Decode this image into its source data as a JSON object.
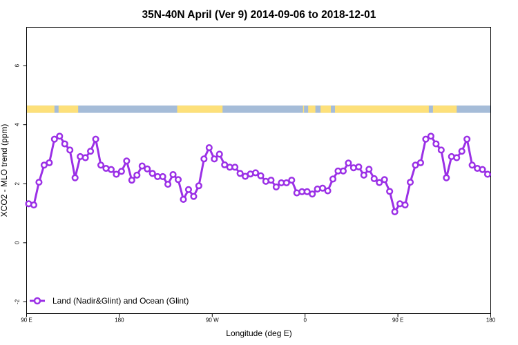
{
  "chart_data": {
    "type": "line",
    "title": "35N-40N April (Ver 9)   2014-09-06 to 2018-12-01",
    "xlabel": "Longitude (deg E)",
    "ylabel": "XCO2 - MLO trend (ppm)",
    "xlim": [
      90,
      540
    ],
    "ylim": [
      -2.4,
      7.3
    ],
    "x_ticks": [
      {
        "value": 90,
        "label": "90 E"
      },
      {
        "value": 180,
        "label": "180"
      },
      {
        "value": 270,
        "label": "90 W"
      },
      {
        "value": 360,
        "label": "0"
      },
      {
        "value": 450,
        "label": "90 E"
      },
      {
        "value": 540,
        "label": "180"
      }
    ],
    "y_ticks": [
      {
        "value": -2,
        "label": "-2"
      },
      {
        "value": 0,
        "label": "0"
      },
      {
        "value": 2,
        "label": "2"
      },
      {
        "value": 4,
        "label": "4"
      },
      {
        "value": 6,
        "label": "6"
      }
    ],
    "grid": false,
    "legend": {
      "position": "bottom-left",
      "entries": [
        "Land (Nadir&Glint) and Ocean (Glint)"
      ]
    },
    "series": [
      {
        "name": "Land (Nadir&Glint) and Ocean (Glint)",
        "color": "#9b30e6",
        "x": [
          92,
          97,
          102,
          107,
          112,
          117,
          122,
          127,
          132,
          137,
          142,
          147,
          152,
          157,
          162,
          167,
          172,
          177,
          182,
          187,
          192,
          197,
          202,
          207,
          212,
          217,
          222,
          227,
          232,
          237,
          242,
          247,
          252,
          257,
          262,
          267,
          272,
          277,
          282,
          287,
          292,
          297,
          302,
          307,
          312,
          317,
          322,
          327,
          332,
          337,
          342,
          347,
          352,
          357,
          362,
          367,
          372,
          377,
          382,
          387,
          392,
          397,
          402,
          407,
          412,
          417,
          422,
          427,
          432,
          437,
          442,
          447,
          452,
          457,
          462,
          467,
          472,
          477,
          482,
          487,
          492,
          497,
          502,
          507,
          512,
          517,
          522,
          527,
          532,
          537
        ],
        "y": [
          1.32,
          1.28,
          2.05,
          2.63,
          2.71,
          3.51,
          3.61,
          3.35,
          3.14,
          2.2,
          2.92,
          2.88,
          3.1,
          3.51,
          2.63,
          2.52,
          2.48,
          2.32,
          2.42,
          2.77,
          2.12,
          2.29,
          2.6,
          2.5,
          2.35,
          2.24,
          2.24,
          1.98,
          2.31,
          2.14,
          1.47,
          1.8,
          1.57,
          1.93,
          2.84,
          3.22,
          2.84,
          3.0,
          2.64,
          2.56,
          2.56,
          2.35,
          2.25,
          2.33,
          2.37,
          2.27,
          2.08,
          2.12,
          1.89,
          2.03,
          2.03,
          2.12,
          1.69,
          1.73,
          1.73,
          1.65,
          1.82,
          1.85,
          1.76,
          2.16,
          2.43,
          2.43,
          2.7,
          2.54,
          2.57,
          2.29,
          2.49,
          2.17,
          2.04,
          2.14,
          1.74,
          1.05,
          1.32,
          1.28,
          2.05,
          2.63,
          2.71,
          3.51,
          3.61,
          3.35,
          3.14,
          2.2,
          2.92,
          2.88,
          3.1,
          3.51,
          2.63,
          2.52,
          2.48,
          2.32
        ]
      }
    ],
    "land_mask_band": {
      "y_range": [
        4.4,
        4.65
      ],
      "ocean_color": "#a5bcd8",
      "land_color": "#fde07a",
      "land_lon_ranges": [
        [
          90,
          117
        ],
        [
          121,
          140
        ],
        [
          236,
          280
        ],
        [
          358,
          359
        ],
        [
          363,
          370
        ],
        [
          375,
          385
        ],
        [
          389,
          480
        ],
        [
          484,
          507
        ]
      ]
    }
  }
}
